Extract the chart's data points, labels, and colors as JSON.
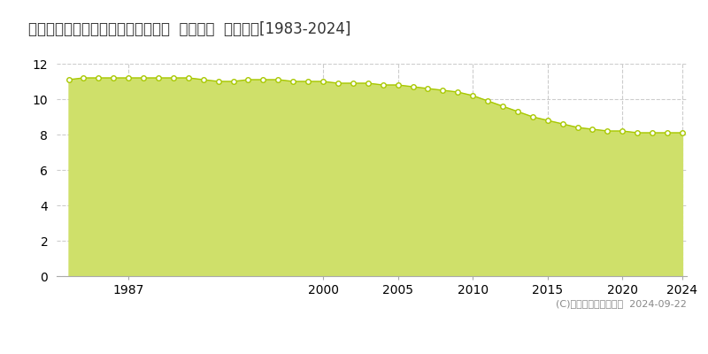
{
  "title": "宮崎県都城市下川東１丁目７号８番  基準地価  地価推移[1983-2024]",
  "years": [
    1983,
    1984,
    1985,
    1986,
    1987,
    1988,
    1989,
    1990,
    1991,
    1992,
    1993,
    1994,
    1995,
    1996,
    1997,
    1998,
    1999,
    2000,
    2001,
    2002,
    2003,
    2004,
    2005,
    2006,
    2007,
    2008,
    2009,
    2010,
    2011,
    2012,
    2013,
    2014,
    2015,
    2016,
    2017,
    2018,
    2019,
    2020,
    2021,
    2022,
    2023,
    2024
  ],
  "values": [
    11.1,
    11.2,
    11.2,
    11.2,
    11.2,
    11.2,
    11.2,
    11.2,
    11.2,
    11.1,
    11.0,
    11.0,
    11.1,
    11.1,
    11.1,
    11.0,
    11.0,
    11.0,
    10.9,
    10.9,
    10.9,
    10.8,
    10.8,
    10.7,
    10.6,
    10.5,
    10.4,
    10.2,
    9.9,
    9.6,
    9.3,
    9.0,
    8.8,
    8.6,
    8.4,
    8.3,
    8.2,
    8.2,
    8.1,
    8.1,
    8.1,
    8.1
  ],
  "fill_color": "#cfe06a",
  "line_color": "#a8c800",
  "marker_color_face": "#ffffff",
  "marker_color_edge": "#a8c800",
  "background_color": "#ffffff",
  "grid_color": "#cccccc",
  "ylim": [
    0,
    12
  ],
  "yticks": [
    0,
    2,
    4,
    6,
    8,
    10,
    12
  ],
  "xlabel_ticks": [
    1987,
    2000,
    2005,
    2010,
    2015,
    2020,
    2024
  ],
  "title_fontsize": 12,
  "tick_fontsize": 10,
  "legend_marker_color": "#c8dc50",
  "copyright_text": "(C)土地価格ドットコム  2024-09-22"
}
